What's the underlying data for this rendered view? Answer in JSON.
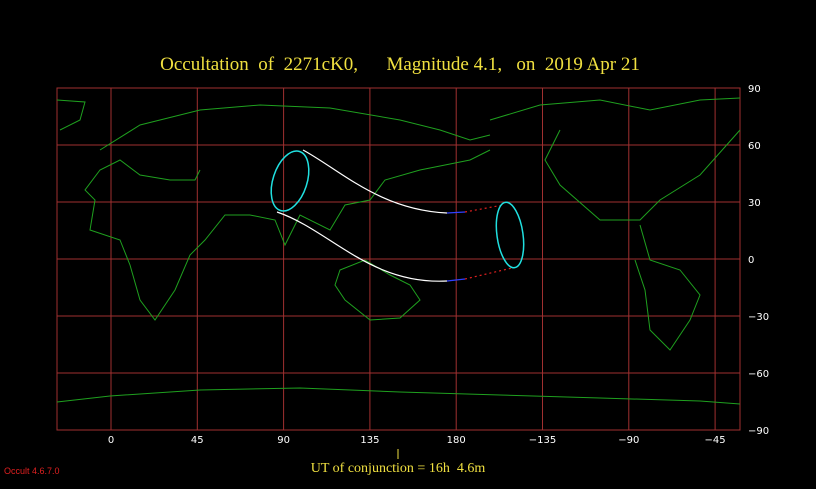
{
  "header": {
    "title": "Occultation  of  2271cK0,      Magnitude 4.1,   on  2019 Apr 21"
  },
  "map": {
    "longitude_labels": [
      "0",
      "45",
      "90",
      "135",
      "180",
      "−135",
      "−90",
      "−45"
    ],
    "latitude_labels": [
      "90",
      "60",
      "30",
      "0",
      "−30",
      "−60",
      "−90"
    ]
  },
  "footer": {
    "conjunction": "UT of conjunction = 16h  4.6m",
    "version": "Occult 4.6.7.0"
  }
}
